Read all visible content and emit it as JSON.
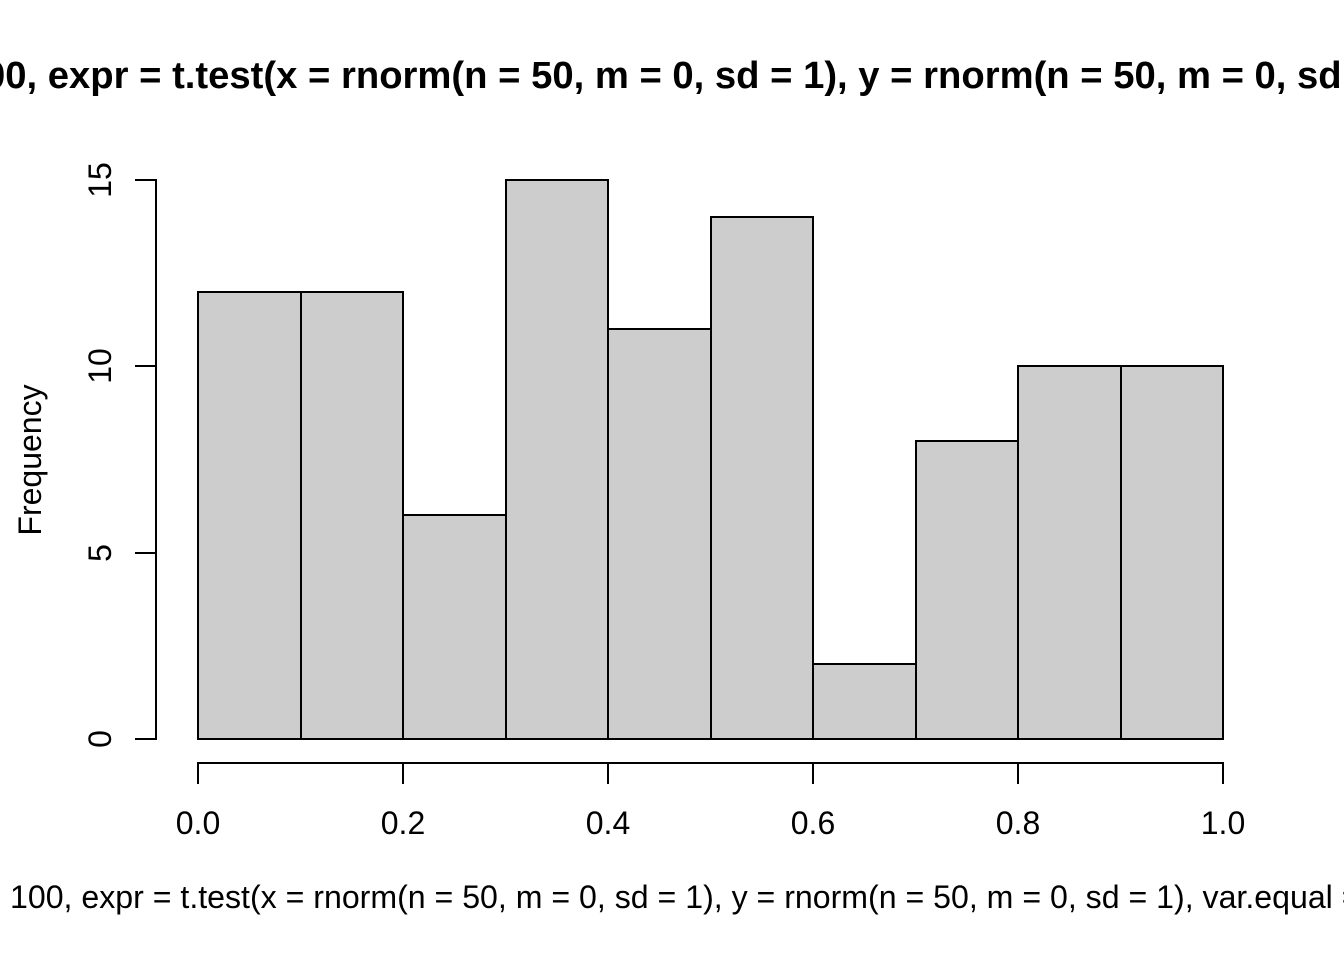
{
  "chart_data": {
    "type": "bar",
    "subtype": "histogram",
    "title_visible": "00, expr = t.test(x = rnorm(n = 50, m = 0, sd = 1), y = rnorm(n = 50, m = 0, sd",
    "xlabel_visible": "100, expr = t.test(x = rnorm(n = 50, m = 0, sd = 1), y = rnorm(n = 50, m = 0, sd = 1), var.equal =",
    "ylabel": "Frequency",
    "bin_start": 0.0,
    "bin_width": 0.1,
    "counts": [
      12,
      12,
      6,
      15,
      11,
      14,
      2,
      8,
      10,
      10
    ],
    "x_ticks": [
      "0.0",
      "0.2",
      "0.4",
      "0.6",
      "0.8",
      "1.0"
    ],
    "y_ticks": [
      "0",
      "5",
      "10",
      "15"
    ],
    "xlim": [
      0.0,
      1.0
    ],
    "ylim": [
      0,
      15
    ],
    "bar_fill": "#cdcdcd",
    "bar_border": "#000000",
    "grid": false,
    "legend": false
  }
}
